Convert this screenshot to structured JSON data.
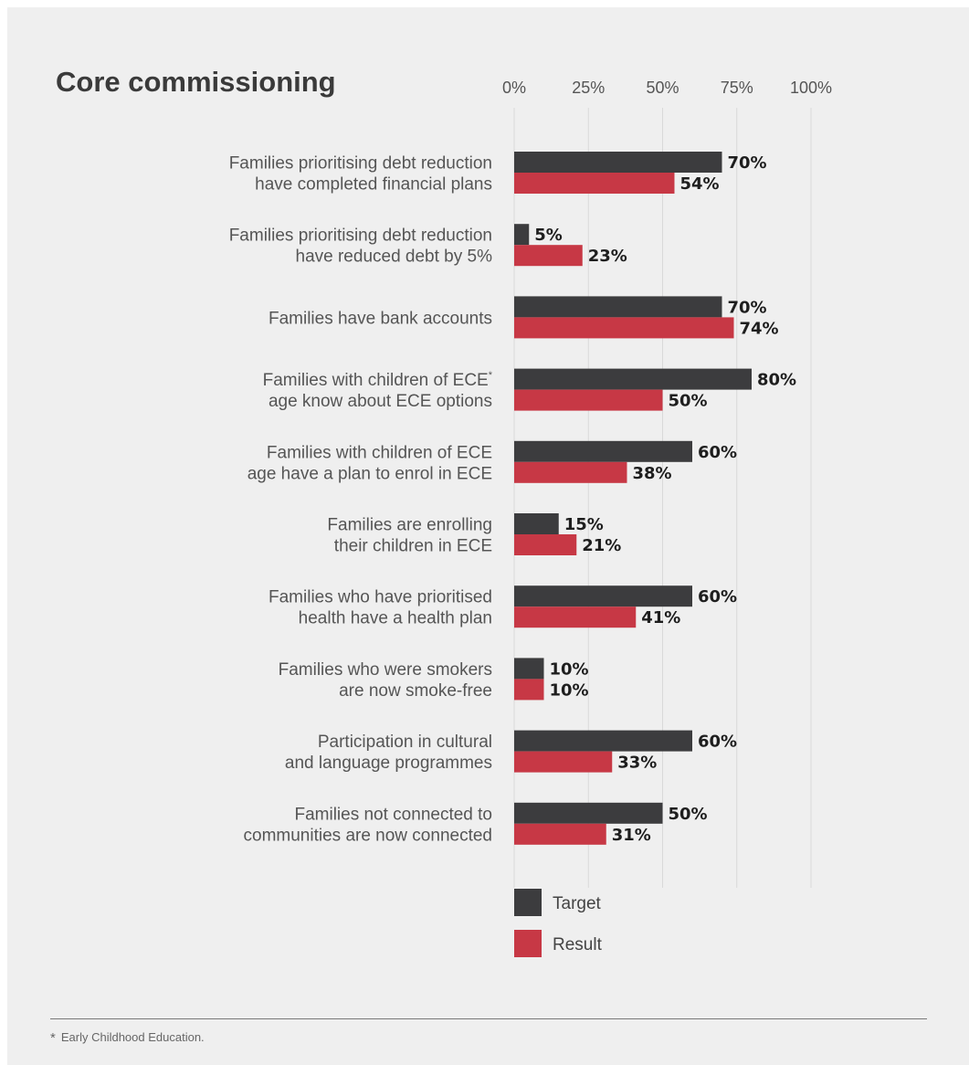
{
  "title": "Core commissioning",
  "footnote": {
    "mark": "*",
    "text": "Early Childhood Education."
  },
  "colors": {
    "target": "#3c3c3e",
    "result": "#c73845",
    "background": "#efefef",
    "grid": "#d9d9d9"
  },
  "chart_data": {
    "type": "bar",
    "orientation": "horizontal",
    "title": "Core commissioning",
    "xlim": [
      0,
      100
    ],
    "x_ticks": [
      0,
      25,
      50,
      75,
      100
    ],
    "x_tick_labels": [
      "0%",
      "25%",
      "50%",
      "75%",
      "100%"
    ],
    "grid": true,
    "legend_position": "bottom",
    "categories": [
      [
        "Families prioritising debt reduction",
        "have completed financial plans"
      ],
      [
        "Families prioritising debt reduction",
        "have reduced debt by 5%"
      ],
      [
        "Families have bank accounts"
      ],
      [
        "Families with children of ECE*",
        "age know about ECE options"
      ],
      [
        "Families with children of ECE",
        "age have a plan to enrol in ECE"
      ],
      [
        "Families are enrolling",
        "their children in ECE"
      ],
      [
        "Families who have prioritised",
        "health have a health plan"
      ],
      [
        "Families who were smokers",
        "are now smoke-free"
      ],
      [
        "Participation in cultural",
        "and language programmes"
      ],
      [
        "Families not connected to",
        "communities are now connected"
      ]
    ],
    "series": [
      {
        "name": "Target",
        "color": "#3c3c3e",
        "values": [
          70,
          5,
          70,
          80,
          60,
          15,
          60,
          10,
          60,
          50
        ],
        "labels": [
          "70%",
          "5%",
          "70%",
          "80%",
          "60%",
          "15%",
          "60%",
          "10%",
          "60%",
          "50%"
        ]
      },
      {
        "name": "Result",
        "color": "#c73845",
        "values": [
          54,
          23,
          74,
          50,
          38,
          21,
          41,
          10,
          33,
          31
        ],
        "labels": [
          "54%",
          "23%",
          "74%",
          "50%",
          "38%",
          "21%",
          "41%",
          "10%",
          "33%",
          "31%"
        ]
      }
    ]
  }
}
